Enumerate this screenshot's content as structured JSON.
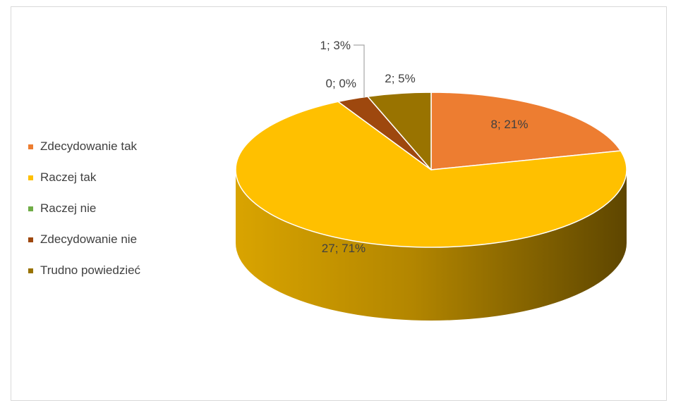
{
  "chart_data": {
    "type": "pie",
    "title": "",
    "slices": [
      {
        "name": "Zdecydowanie tak",
        "value": 8,
        "percent": 21,
        "label": "8; 21%",
        "color": "#ED7D31"
      },
      {
        "name": "Raczej tak",
        "value": 27,
        "percent": 71,
        "label": "27; 71%",
        "color": "#FFC000"
      },
      {
        "name": "Raczej nie",
        "value": 0,
        "percent": 0,
        "label": "0; 0%",
        "color": "#70AD47"
      },
      {
        "name": "Zdecydowanie nie",
        "value": 1,
        "percent": 3,
        "label": "1; 3%",
        "color": "#9E480E"
      },
      {
        "name": "Trudno powiedzieć",
        "value": 2,
        "percent": 5,
        "label": "2; 5%",
        "color": "#997300"
      }
    ],
    "legend_position": "left",
    "style": "3d"
  }
}
